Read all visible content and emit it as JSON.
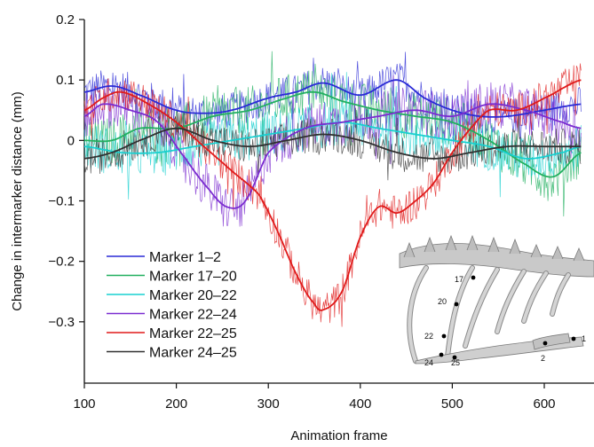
{
  "chart_data": {
    "type": "line",
    "xlabel": "Animation frame",
    "ylabel": "Change in intermarker distance (mm)",
    "xlim": [
      100,
      640
    ],
    "ylim": [
      -0.4,
      0.2
    ],
    "x_ticks": [
      100,
      200,
      300,
      400,
      500,
      600
    ],
    "x_tick_labels": [
      "100",
      "200",
      "300",
      "400",
      "500",
      "600"
    ],
    "y_ticks": [
      0.2,
      0.1,
      0,
      -0.1,
      -0.2,
      -0.3
    ],
    "y_tick_labels": [
      "0.2",
      "0.1",
      "0",
      "−0.1",
      "−0.2",
      "−0.3"
    ],
    "grid": false,
    "legend_position": "bottom-left",
    "noise_note": "each series drawn as a smooth curve plus a noisy raw trace of the same color",
    "series": [
      {
        "name": "Marker 1–2",
        "color": "#2a2ad6",
        "smooth_x": [
          100,
          130,
          160,
          200,
          230,
          260,
          300,
          330,
          360,
          400,
          440,
          470,
          500,
          530,
          560,
          600,
          640
        ],
        "smooth_y": [
          0.08,
          0.09,
          0.075,
          0.05,
          0.045,
          0.05,
          0.07,
          0.08,
          0.095,
          0.075,
          0.1,
          0.07,
          0.05,
          0.04,
          0.04,
          0.05,
          0.06
        ],
        "noise": 0.03
      },
      {
        "name": "Marker 17–20",
        "color": "#22b060",
        "smooth_x": [
          100,
          130,
          160,
          200,
          240,
          280,
          320,
          350,
          380,
          420,
          460,
          500,
          540,
          580,
          610,
          640
        ],
        "smooth_y": [
          0.0,
          0.0,
          0.02,
          0.02,
          0.04,
          0.05,
          0.07,
          0.08,
          0.065,
          0.05,
          0.04,
          0.03,
          0.0,
          -0.04,
          -0.06,
          -0.02
        ],
        "noise": 0.04
      },
      {
        "name": "Marker 20–22",
        "color": "#18d0d0",
        "smooth_x": [
          100,
          140,
          180,
          220,
          260,
          300,
          340,
          380,
          420,
          460,
          500,
          540,
          580,
          620,
          640
        ],
        "smooth_y": [
          -0.01,
          -0.02,
          -0.02,
          -0.01,
          0.0,
          0.01,
          0.02,
          0.03,
          0.02,
          0.01,
          0.0,
          -0.01,
          -0.03,
          -0.02,
          -0.01
        ],
        "noise": 0.04
      },
      {
        "name": "Marker 22–24",
        "color": "#7a2bd0",
        "smooth_x": [
          100,
          120,
          150,
          180,
          210,
          235,
          255,
          275,
          300,
          340,
          380,
          420,
          460,
          500,
          540,
          580,
          620,
          640
        ],
        "smooth_y": [
          0.04,
          0.06,
          0.05,
          0.03,
          -0.03,
          -0.08,
          -0.11,
          -0.1,
          -0.02,
          0.02,
          0.03,
          0.04,
          0.05,
          0.04,
          0.06,
          0.05,
          0.03,
          0.02
        ],
        "noise": 0.04
      },
      {
        "name": "Marker 22–25",
        "color": "#e01a1a",
        "smooth_x": [
          100,
          120,
          140,
          170,
          200,
          230,
          260,
          290,
          310,
          330,
          350,
          360,
          380,
          400,
          420,
          440,
          460,
          480,
          500,
          520,
          540,
          570,
          600,
          640
        ],
        "smooth_y": [
          0.05,
          0.07,
          0.08,
          0.06,
          0.03,
          -0.01,
          -0.05,
          -0.09,
          -0.15,
          -0.22,
          -0.27,
          -0.28,
          -0.25,
          -0.16,
          -0.11,
          -0.12,
          -0.1,
          -0.07,
          -0.02,
          0.02,
          0.05,
          0.05,
          0.07,
          0.1
        ],
        "noise": 0.03
      },
      {
        "name": "Marker 24–25",
        "color": "#303030",
        "smooth_x": [
          100,
          130,
          160,
          200,
          240,
          280,
          320,
          360,
          400,
          440,
          480,
          520,
          560,
          600,
          640
        ],
        "smooth_y": [
          -0.03,
          -0.02,
          0.0,
          0.02,
          0.0,
          -0.01,
          0.0,
          0.01,
          0.0,
          -0.02,
          -0.03,
          -0.02,
          -0.01,
          -0.01,
          -0.01
        ],
        "noise": 0.03
      }
    ],
    "inset": {
      "labels": [
        "17",
        "20",
        "22",
        "24",
        "25",
        "2",
        "1"
      ]
    }
  }
}
